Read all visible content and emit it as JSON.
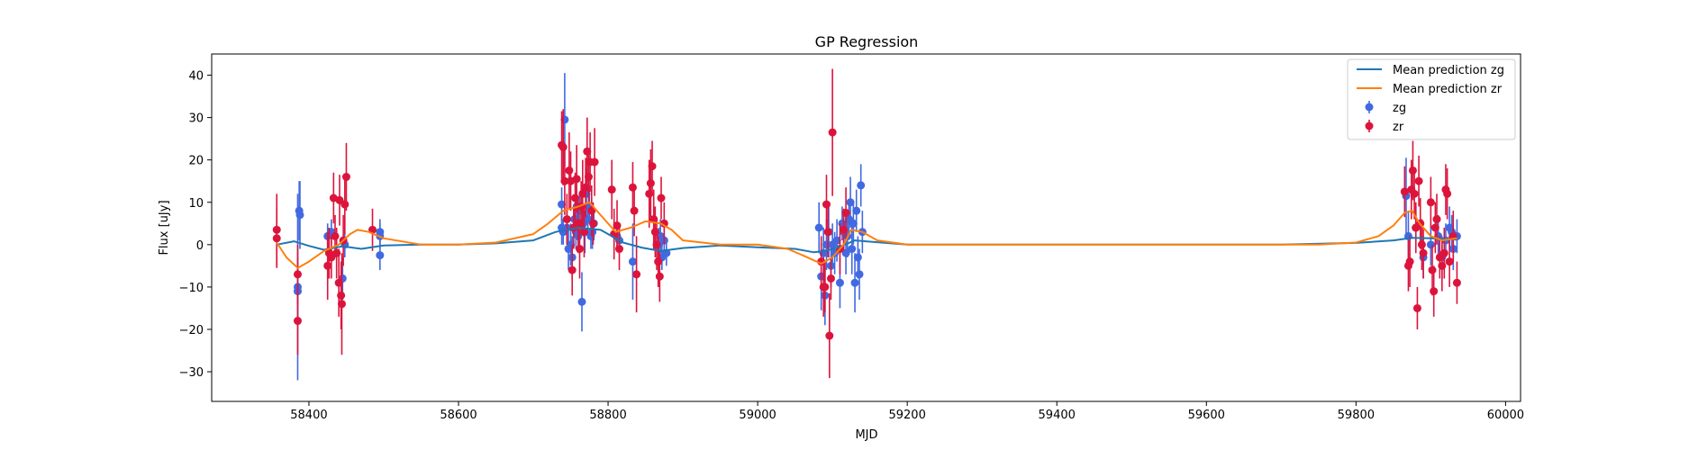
{
  "chart_data": {
    "type": "scatter",
    "title": "GP Regression",
    "xlabel": "MJD",
    "ylabel": "Flux [uJy]",
    "xlim": [
      58270,
      60020
    ],
    "ylim": [
      -37,
      45
    ],
    "x_ticks": [
      58400,
      58600,
      58800,
      59000,
      59200,
      59400,
      59600,
      59800,
      60000
    ],
    "y_ticks": [
      -30,
      -20,
      -10,
      0,
      10,
      20,
      30,
      40
    ],
    "grid": false,
    "legend_position": "top-right",
    "series": [
      {
        "name": "Mean prediction zg",
        "kind": "line",
        "color": "#1f77b4",
        "points": [
          [
            58357,
            0
          ],
          [
            58380,
            0.8
          ],
          [
            58400,
            -0.3
          ],
          [
            58420,
            -1.2
          ],
          [
            58445,
            -0.4
          ],
          [
            58470,
            -1
          ],
          [
            58500,
            -0.2
          ],
          [
            58550,
            0
          ],
          [
            58600,
            0
          ],
          [
            58650,
            0.3
          ],
          [
            58700,
            1
          ],
          [
            58730,
            3
          ],
          [
            58760,
            4
          ],
          [
            58790,
            3.5
          ],
          [
            58820,
            0.5
          ],
          [
            58845,
            -0.7
          ],
          [
            58870,
            -1.5
          ],
          [
            58900,
            -0.8
          ],
          [
            58950,
            -0.2
          ],
          [
            59000,
            -0.6
          ],
          [
            59050,
            -1
          ],
          [
            59075,
            -1.8
          ],
          [
            59090,
            -1.5
          ],
          [
            59110,
            -0.5
          ],
          [
            59130,
            1
          ],
          [
            59150,
            0.7
          ],
          [
            59200,
            0
          ],
          [
            59300,
            0
          ],
          [
            59500,
            0
          ],
          [
            59700,
            0
          ],
          [
            59800,
            0.4
          ],
          [
            59850,
            1
          ],
          [
            59875,
            1.6
          ],
          [
            59900,
            1.5
          ],
          [
            59935,
            1.2
          ]
        ]
      },
      {
        "name": "Mean prediction zr",
        "kind": "line",
        "color": "#ff7f0e",
        "points": [
          [
            58357,
            0.5
          ],
          [
            58370,
            -3
          ],
          [
            58385,
            -5.5
          ],
          [
            58400,
            -4
          ],
          [
            58420,
            -1.5
          ],
          [
            58440,
            0
          ],
          [
            58455,
            2.5
          ],
          [
            58465,
            3.5
          ],
          [
            58480,
            3
          ],
          [
            58500,
            1.5
          ],
          [
            58550,
            0
          ],
          [
            58600,
            0
          ],
          [
            58650,
            0.5
          ],
          [
            58700,
            2.5
          ],
          [
            58720,
            5
          ],
          [
            58740,
            8
          ],
          [
            58760,
            9
          ],
          [
            58775,
            10
          ],
          [
            58790,
            7
          ],
          [
            58810,
            3
          ],
          [
            58830,
            4
          ],
          [
            58850,
            5.5
          ],
          [
            58870,
            5
          ],
          [
            58885,
            3.5
          ],
          [
            58900,
            1
          ],
          [
            58950,
            0
          ],
          [
            59000,
            0
          ],
          [
            59040,
            -1
          ],
          [
            59060,
            -2.5
          ],
          [
            59085,
            -4.5
          ],
          [
            59100,
            -3
          ],
          [
            59115,
            0
          ],
          [
            59125,
            3.5
          ],
          [
            59140,
            3
          ],
          [
            59160,
            1
          ],
          [
            59200,
            0
          ],
          [
            59400,
            0
          ],
          [
            59600,
            0
          ],
          [
            59750,
            0
          ],
          [
            59800,
            0.5
          ],
          [
            59830,
            2
          ],
          [
            59850,
            4.5
          ],
          [
            59865,
            7.5
          ],
          [
            59875,
            8
          ],
          [
            59885,
            5
          ],
          [
            59900,
            2
          ],
          [
            59915,
            1
          ],
          [
            59935,
            1.5
          ]
        ]
      },
      {
        "name": "zg",
        "kind": "errorbar",
        "color": "#4169e1",
        "points": [
          [
            58385,
            -10,
            22
          ],
          [
            58385,
            -11,
            8
          ],
          [
            58387,
            8,
            7
          ],
          [
            58388,
            7,
            8
          ],
          [
            58425,
            2,
            3
          ],
          [
            58430,
            3,
            3
          ],
          [
            58445,
            -8,
            5
          ],
          [
            58448,
            0,
            3
          ],
          [
            58495,
            3,
            3
          ],
          [
            58495,
            2,
            3
          ],
          [
            58495,
            -2.5,
            3.5
          ],
          [
            58738,
            9.5,
            4
          ],
          [
            58738,
            4,
            4
          ],
          [
            58740,
            3,
            3
          ],
          [
            58742,
            29.5,
            11
          ],
          [
            58745,
            4,
            4
          ],
          [
            58747,
            -1,
            5
          ],
          [
            58750,
            0,
            5
          ],
          [
            58752,
            -3,
            5
          ],
          [
            58755,
            6,
            3
          ],
          [
            58757,
            3,
            4
          ],
          [
            58758,
            9,
            5
          ],
          [
            58760,
            2,
            4
          ],
          [
            58762,
            8,
            4
          ],
          [
            58765,
            -13.5,
            7
          ],
          [
            58767,
            5,
            3
          ],
          [
            58769,
            3,
            5
          ],
          [
            58771,
            12,
            6
          ],
          [
            58773,
            6,
            4
          ],
          [
            58775,
            9,
            4
          ],
          [
            58777,
            2,
            3
          ],
          [
            58779,
            3,
            4
          ],
          [
            58781,
            5,
            4
          ],
          [
            58812,
            2,
            3
          ],
          [
            58815,
            1,
            3
          ],
          [
            58833,
            -4,
            9
          ],
          [
            58868,
            0,
            4
          ],
          [
            58870,
            2,
            4
          ],
          [
            58872,
            -3,
            3
          ],
          [
            58875,
            1,
            3
          ],
          [
            58878,
            -2,
            3
          ],
          [
            59082,
            4,
            6
          ],
          [
            59085,
            -7.5,
            8
          ],
          [
            59088,
            -2,
            6
          ],
          [
            59090,
            -12,
            7
          ],
          [
            59092,
            0,
            6
          ],
          [
            59095,
            3,
            6
          ],
          [
            59098,
            -5,
            5
          ],
          [
            59100,
            0,
            5
          ],
          [
            59103,
            -2,
            5
          ],
          [
            59106,
            1,
            5
          ],
          [
            59110,
            -9,
            6
          ],
          [
            59113,
            5,
            4
          ],
          [
            59115,
            3,
            5
          ],
          [
            59118,
            -2,
            5
          ],
          [
            59120,
            2,
            5
          ],
          [
            59122,
            6,
            4
          ],
          [
            59124,
            10,
            6
          ],
          [
            59126,
            -1,
            6
          ],
          [
            59128,
            5,
            5
          ],
          [
            59130,
            -9,
            7
          ],
          [
            59132,
            8,
            5
          ],
          [
            59134,
            -3,
            5
          ],
          [
            59136,
            -7,
            6
          ],
          [
            59138,
            14,
            5
          ],
          [
            59140,
            3,
            5
          ],
          [
            59867,
            11.5,
            9
          ],
          [
            59870,
            2,
            6
          ],
          [
            59880,
            4,
            5
          ],
          [
            59890,
            -3,
            5
          ],
          [
            59900,
            0,
            5
          ],
          [
            59910,
            2,
            5
          ],
          [
            59915,
            -3,
            5
          ],
          [
            59920,
            1,
            4
          ],
          [
            59925,
            4,
            5
          ],
          [
            59928,
            3,
            4
          ],
          [
            59930,
            -1,
            5
          ],
          [
            59935,
            2,
            4
          ]
        ]
      },
      {
        "name": "zr",
        "kind": "errorbar",
        "color": "#dc143c",
        "points": [
          [
            58357,
            3.5,
            8.5
          ],
          [
            58357,
            1.5,
            7
          ],
          [
            58385,
            -7,
            7
          ],
          [
            58385,
            -18,
            8
          ],
          [
            58425,
            -5,
            8
          ],
          [
            58427,
            -2,
            6
          ],
          [
            58430,
            -3,
            5
          ],
          [
            58433,
            11,
            6
          ],
          [
            58435,
            2,
            5
          ],
          [
            58437,
            -2,
            6
          ],
          [
            58440,
            -9,
            8
          ],
          [
            58441,
            10.5,
            6
          ],
          [
            58443,
            -12,
            8
          ],
          [
            58444,
            -14,
            12
          ],
          [
            58446,
            1,
            6
          ],
          [
            58448,
            9.5,
            7
          ],
          [
            58450,
            16,
            8
          ],
          [
            58485,
            3.5,
            5
          ],
          [
            58738,
            23.5,
            8
          ],
          [
            58740,
            23,
            9
          ],
          [
            58742,
            15,
            8
          ],
          [
            58745,
            6,
            6
          ],
          [
            58748,
            17.5,
            9
          ],
          [
            58750,
            15,
            7
          ],
          [
            58752,
            -6,
            6
          ],
          [
            58754,
            4,
            5
          ],
          [
            58756,
            11,
            6
          ],
          [
            58758,
            15.5,
            8
          ],
          [
            58760,
            5,
            6
          ],
          [
            58762,
            -1,
            7
          ],
          [
            58764,
            9,
            6
          ],
          [
            58766,
            12,
            8
          ],
          [
            58768,
            3,
            6
          ],
          [
            58770,
            13.5,
            7
          ],
          [
            58772,
            22,
            8
          ],
          [
            58774,
            16,
            6
          ],
          [
            58776,
            19.5,
            7
          ],
          [
            58778,
            8,
            6
          ],
          [
            58780,
            5,
            5
          ],
          [
            58782,
            19.5,
            8
          ],
          [
            58805,
            13,
            7
          ],
          [
            58808,
            2.5,
            6
          ],
          [
            58812,
            4.5,
            6
          ],
          [
            58815,
            -1,
            5
          ],
          [
            58833,
            13.5,
            6
          ],
          [
            58835,
            8,
            6
          ],
          [
            58838,
            -7,
            9
          ],
          [
            58855,
            12,
            8
          ],
          [
            58857,
            14.5,
            8
          ],
          [
            58859,
            18.5,
            6
          ],
          [
            58861,
            6,
            7
          ],
          [
            58863,
            3,
            6
          ],
          [
            58865,
            0,
            6
          ],
          [
            58867,
            -4,
            6
          ],
          [
            58869,
            -7.5,
            6
          ],
          [
            58871,
            11,
            5
          ],
          [
            58875,
            5,
            5
          ],
          [
            59085,
            -4,
            6
          ],
          [
            59088,
            -10,
            7
          ],
          [
            59090,
            -10,
            6
          ],
          [
            59092,
            9.5,
            7
          ],
          [
            59094,
            3,
            6
          ],
          [
            59096,
            -21.5,
            10
          ],
          [
            59098,
            -8,
            5
          ],
          [
            59100,
            26.5,
            15
          ],
          [
            59110,
            -1,
            6
          ],
          [
            59115,
            3.5,
            5
          ],
          [
            59118,
            7.5,
            6
          ],
          [
            59865,
            12.5,
            6
          ],
          [
            59870,
            -5,
            6
          ],
          [
            59872,
            -4,
            6
          ],
          [
            59874,
            13,
            7
          ],
          [
            59876,
            17.5,
            7
          ],
          [
            59878,
            12,
            6
          ],
          [
            59880,
            4,
            6
          ],
          [
            59882,
            -15,
            5
          ],
          [
            59884,
            15,
            6
          ],
          [
            59886,
            5,
            6
          ],
          [
            59888,
            0,
            6
          ],
          [
            59890,
            -2,
            6
          ],
          [
            59900,
            10,
            6
          ],
          [
            59902,
            -6,
            6
          ],
          [
            59904,
            -11,
            6
          ],
          [
            59906,
            4,
            6
          ],
          [
            59908,
            6,
            6
          ],
          [
            59912,
            -3,
            5
          ],
          [
            59915,
            -5,
            6
          ],
          [
            59918,
            -2,
            6
          ],
          [
            59920,
            13,
            6
          ],
          [
            59922,
            12,
            6
          ],
          [
            59925,
            -4,
            6
          ],
          [
            59930,
            2,
            6
          ],
          [
            59935,
            -9,
            5
          ]
        ]
      }
    ]
  }
}
